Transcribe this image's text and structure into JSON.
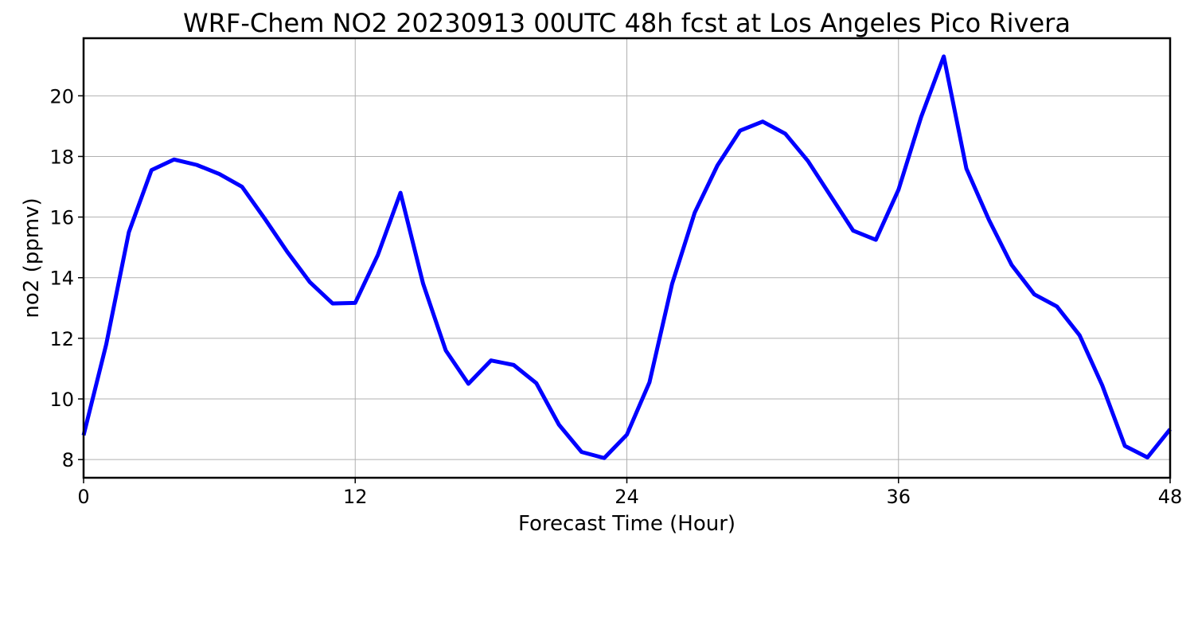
{
  "chart_data": {
    "type": "line",
    "title": "WRF-Chem NO2  20230913 00UTC 48h fcst at Los Angeles Pico Rivera",
    "xlabel": "Forecast Time (Hour)",
    "ylabel": "no2  (ppmv)",
    "xlim": [
      0,
      48
    ],
    "ylim": [
      7.4,
      21.9
    ],
    "xticks": [
      0,
      12,
      24,
      36,
      48
    ],
    "yticks": [
      8,
      10,
      12,
      14,
      16,
      18,
      20
    ],
    "grid": true,
    "legend": "none",
    "series": [
      {
        "color": "#0000ff",
        "x": [
          0,
          1,
          2,
          3,
          4,
          5,
          6,
          7,
          8,
          9,
          10,
          11,
          12,
          13,
          14,
          15,
          16,
          17,
          18,
          19,
          20,
          21,
          22,
          23,
          24,
          25,
          26,
          27,
          28,
          29,
          30,
          31,
          32,
          33,
          34,
          35,
          36,
          37,
          38,
          39,
          40,
          41,
          42,
          43,
          44,
          45,
          46,
          47,
          48
        ],
        "values": [
          8.8,
          11.8,
          15.5,
          17.55,
          17.9,
          17.72,
          17.42,
          17.0,
          15.95,
          14.85,
          13.85,
          13.15,
          13.17,
          14.75,
          16.8,
          13.8,
          11.6,
          10.5,
          11.27,
          11.12,
          10.52,
          9.15,
          8.25,
          8.05,
          8.82,
          10.55,
          13.8,
          16.15,
          17.7,
          18.85,
          19.15,
          18.75,
          17.85,
          16.7,
          15.55,
          15.25,
          16.9,
          19.3,
          21.3,
          17.6,
          15.9,
          14.42,
          13.45,
          13.05,
          12.1,
          10.45,
          8.45,
          8.07,
          9.0
        ]
      }
    ]
  }
}
